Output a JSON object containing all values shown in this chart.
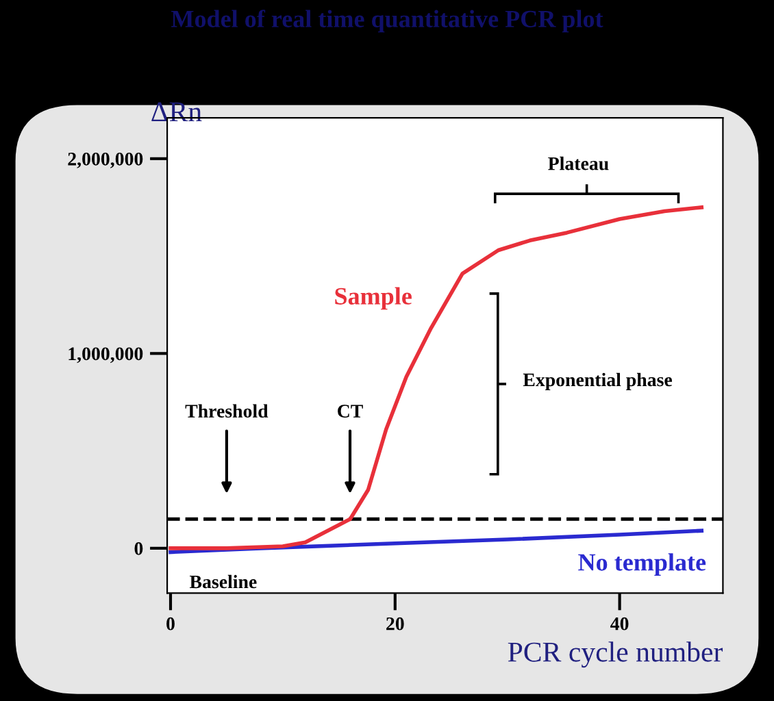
{
  "chart_data": {
    "type": "line",
    "title": "Model of real time quantitative PCR plot",
    "xlabel": "PCR cycle number",
    "ylabel": "ΔRn",
    "series": [
      {
        "name": "Sample",
        "color": "#e8303a",
        "x": [
          0,
          5,
          10,
          12,
          15,
          16,
          17.6,
          19.2,
          21,
          23.2,
          26,
          29.2,
          32,
          35.3,
          40,
          44,
          47.3
        ],
        "values": [
          0,
          0,
          10000.0,
          30000,
          120000,
          150000,
          300000,
          610000,
          880000,
          1130000,
          1410000,
          1530000,
          1580000,
          1620000,
          1690000,
          1730000,
          1750000
        ]
      },
      {
        "name": "No template",
        "color": "#2a2ad0",
        "x": [
          0,
          8,
          20,
          30,
          40,
          47.3
        ],
        "values": [
          -20000,
          0,
          25000,
          45000,
          70000,
          90000
        ]
      }
    ],
    "xlim": [
      -0.3,
      49.2
    ],
    "ylim": [
      -230000,
      2210000
    ],
    "xticks": [
      0,
      20,
      40
    ],
    "yticks": [
      {
        "value": 0,
        "label": "0"
      },
      {
        "value": 1000000,
        "label": "1,000,000"
      },
      {
        "value": 2000000,
        "label": "2,000,000"
      }
    ],
    "ref_lines": [
      {
        "axis": "y",
        "value": 150000,
        "line_style": "dashed",
        "color": "#000000"
      }
    ],
    "annotations": [
      "Threshold",
      "CT",
      "Plateau",
      "Exponential phase",
      "Baseline"
    ],
    "grid": false,
    "legend": false
  }
}
